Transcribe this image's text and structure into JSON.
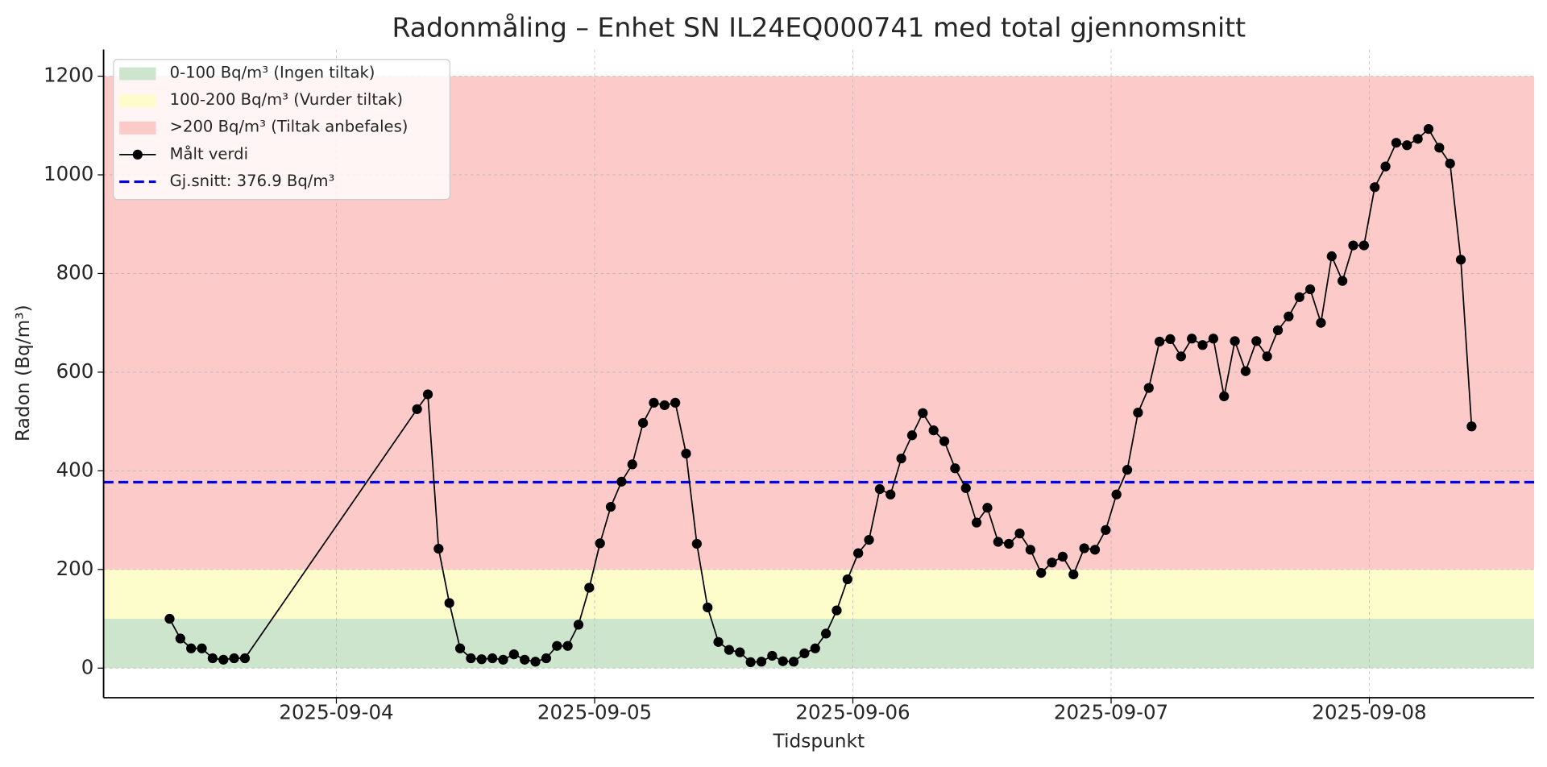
{
  "chart_data": {
    "type": "line",
    "title": "Radonmåling – Enhet SN IL24EQ000741 med total gjennomsnitt",
    "xlabel": "Tidspunkt",
    "ylabel": "Radon (Bq/m³)",
    "xlim": [
      "2025-09-03T02:22",
      "2025-09-08T15:19"
    ],
    "xticks": [
      "2025-09-04",
      "2025-09-05",
      "2025-09-06",
      "2025-09-07",
      "2025-09-08"
    ],
    "ylim": [
      -60,
      1254
    ],
    "yticks": [
      0,
      200,
      400,
      600,
      800,
      1000,
      1200
    ],
    "grid": true,
    "legend": "upper left",
    "bands": [
      {
        "name": "0-100 Bq/m³ (Ingen tiltak)",
        "from": 0,
        "to": 100,
        "color": "#cde5cd"
      },
      {
        "name": "100-200 Bq/m³ (Vurder tiltak)",
        "from": 100,
        "to": 200,
        "color": "#fdfccb"
      },
      {
        "name": ">200 Bq/m³ (Tiltak anbefales)",
        "from": 200,
        "to": 1200,
        "color": "#fdcaca"
      }
    ],
    "average": {
      "name": "Gj.snitt: 376.9 Bq/m³",
      "value": 376.9,
      "color": "#0000e6"
    },
    "series": [
      {
        "name": "Målt verdi",
        "color": "#000000",
        "x": [
          "2025-09-03T08:30",
          "2025-09-03T09:30",
          "2025-09-03T10:30",
          "2025-09-03T11:30",
          "2025-09-03T12:30",
          "2025-09-03T13:30",
          "2025-09-03T14:30",
          "2025-09-03T15:30",
          "2025-09-04T07:30",
          "2025-09-04T08:30",
          "2025-09-04T09:30",
          "2025-09-04T10:30",
          "2025-09-04T11:30",
          "2025-09-04T12:30",
          "2025-09-04T13:30",
          "2025-09-04T14:30",
          "2025-09-04T15:30",
          "2025-09-04T16:30",
          "2025-09-04T17:30",
          "2025-09-04T18:30",
          "2025-09-04T19:30",
          "2025-09-04T20:30",
          "2025-09-04T21:30",
          "2025-09-04T22:30",
          "2025-09-04T23:30",
          "2025-09-05T00:30",
          "2025-09-05T01:30",
          "2025-09-05T02:30",
          "2025-09-05T03:30",
          "2025-09-05T04:30",
          "2025-09-05T05:30",
          "2025-09-05T06:30",
          "2025-09-05T07:30",
          "2025-09-05T08:30",
          "2025-09-05T09:30",
          "2025-09-05T10:30",
          "2025-09-05T11:30",
          "2025-09-05T12:30",
          "2025-09-05T13:30",
          "2025-09-05T14:30",
          "2025-09-05T15:30",
          "2025-09-05T16:30",
          "2025-09-05T17:30",
          "2025-09-05T18:30",
          "2025-09-05T19:30",
          "2025-09-05T20:30",
          "2025-09-05T21:30",
          "2025-09-05T22:30",
          "2025-09-05T23:30",
          "2025-09-06T00:30",
          "2025-09-06T01:30",
          "2025-09-06T02:30",
          "2025-09-06T03:30",
          "2025-09-06T04:30",
          "2025-09-06T05:30",
          "2025-09-06T06:30",
          "2025-09-06T07:30",
          "2025-09-06T08:30",
          "2025-09-06T09:30",
          "2025-09-06T10:30",
          "2025-09-06T11:30",
          "2025-09-06T12:30",
          "2025-09-06T13:30",
          "2025-09-06T14:30",
          "2025-09-06T15:30",
          "2025-09-06T16:30",
          "2025-09-06T17:30",
          "2025-09-06T18:30",
          "2025-09-06T19:30",
          "2025-09-06T20:30",
          "2025-09-06T21:30",
          "2025-09-06T22:30",
          "2025-09-06T23:30",
          "2025-09-07T00:30",
          "2025-09-07T01:30",
          "2025-09-07T02:30",
          "2025-09-07T03:30",
          "2025-09-07T04:30",
          "2025-09-07T05:30",
          "2025-09-07T06:30",
          "2025-09-07T07:30",
          "2025-09-07T08:30",
          "2025-09-07T09:30",
          "2025-09-07T10:30",
          "2025-09-07T11:30",
          "2025-09-07T12:30",
          "2025-09-07T13:30",
          "2025-09-07T14:30",
          "2025-09-07T15:30",
          "2025-09-07T16:30",
          "2025-09-07T17:30",
          "2025-09-07T18:30",
          "2025-09-07T19:30",
          "2025-09-07T20:30",
          "2025-09-07T21:30",
          "2025-09-07T22:30",
          "2025-09-07T23:30",
          "2025-09-08T00:30",
          "2025-09-08T01:30",
          "2025-09-08T02:30",
          "2025-09-08T03:30",
          "2025-09-08T04:30",
          "2025-09-08T05:30",
          "2025-09-08T06:30",
          "2025-09-08T07:30",
          "2025-09-08T08:30",
          "2025-09-08T09:30"
        ],
        "values": [
          100,
          60,
          40,
          40,
          20,
          17,
          20,
          20,
          525,
          555,
          242,
          132,
          40,
          20,
          18,
          20,
          17,
          28,
          17,
          13,
          20,
          45,
          45,
          88,
          163,
          253,
          327,
          378,
          413,
          497,
          538,
          533,
          538,
          435,
          252,
          123,
          53,
          37,
          32,
          12,
          13,
          25,
          14,
          13,
          30,
          40,
          70,
          117,
          180,
          233,
          260,
          363,
          352,
          425,
          472,
          517,
          482,
          460,
          405,
          365,
          295,
          325,
          256,
          252,
          273,
          240,
          193,
          214,
          226,
          190,
          243,
          240,
          280,
          352,
          402,
          518,
          568,
          662,
          667,
          632,
          668,
          655,
          668,
          551,
          663,
          602,
          663,
          632,
          685,
          713,
          752,
          768,
          700,
          835,
          785,
          857,
          857,
          975,
          1017,
          1065,
          1060,
          1073,
          1093,
          1055,
          1023,
          828,
          490
        ]
      }
    ]
  }
}
